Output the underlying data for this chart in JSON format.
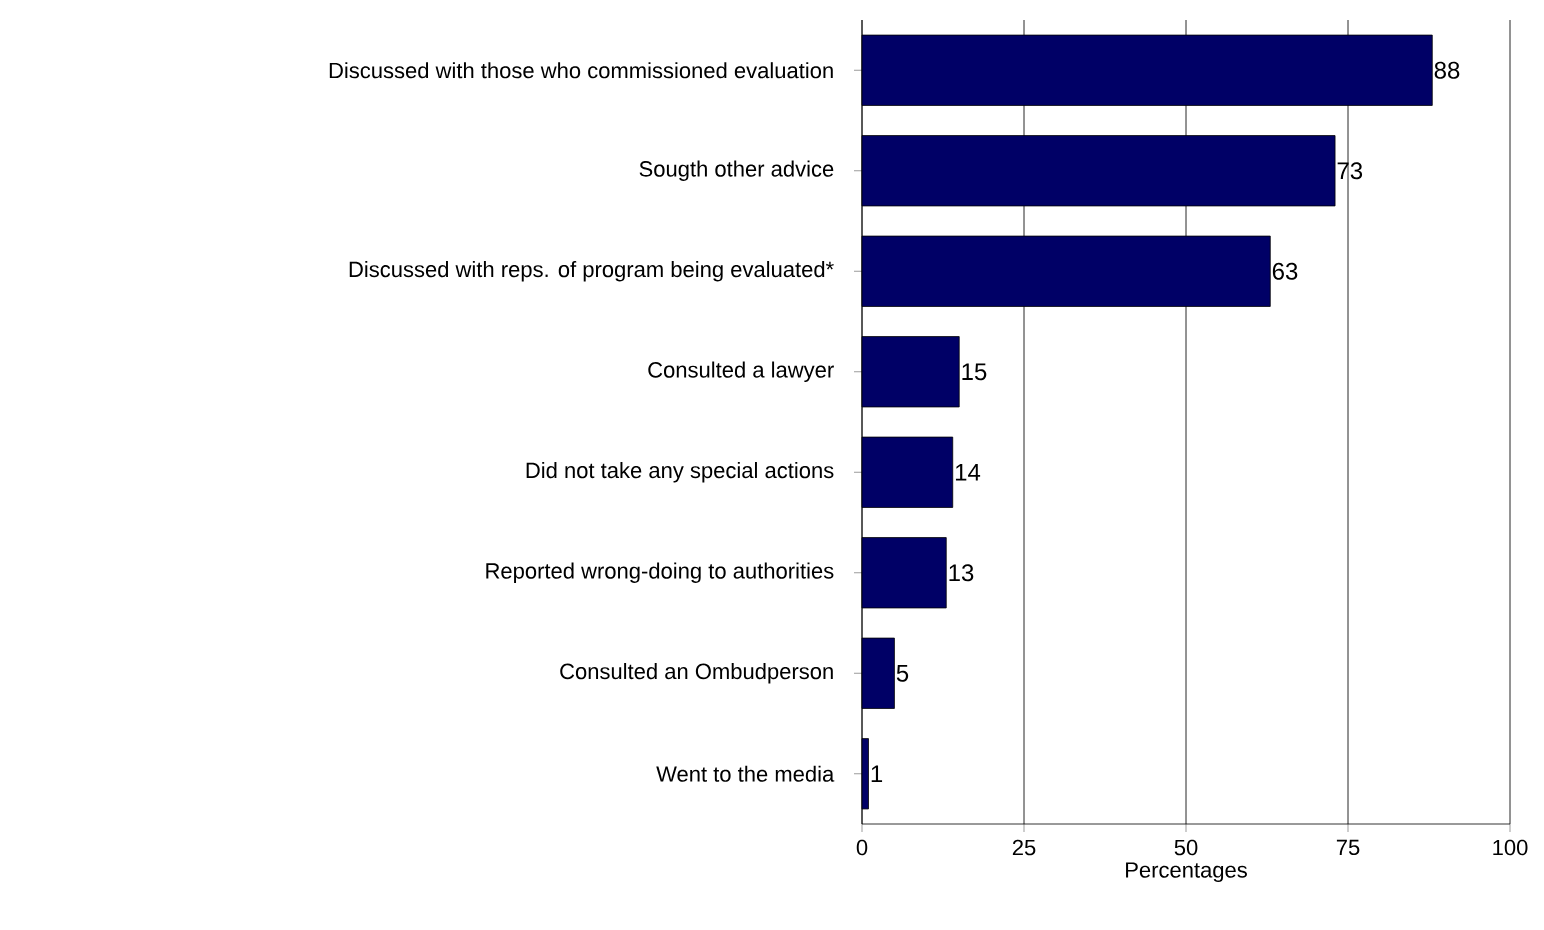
{
  "chart_data": {
    "type": "bar",
    "orientation": "horizontal",
    "xlabel": "Percentages",
    "categories": [
      "Discussed with those who commissioned evaluation",
      "Sougth other advice",
      "Discussed with reps. of program being evaluated*",
      "Consulted a lawyer",
      "Did not take any special actions",
      "Reported wrong-doing to authorities",
      "Consulted an Ombudperson",
      "Went to the media"
    ],
    "values": [
      88,
      73,
      63,
      15,
      14,
      13,
      5,
      1
    ],
    "color": "#000066",
    "xlim": [
      0,
      100
    ],
    "xticks": [
      0,
      25,
      50,
      75,
      100
    ],
    "grid": "x",
    "data_labels": true
  }
}
